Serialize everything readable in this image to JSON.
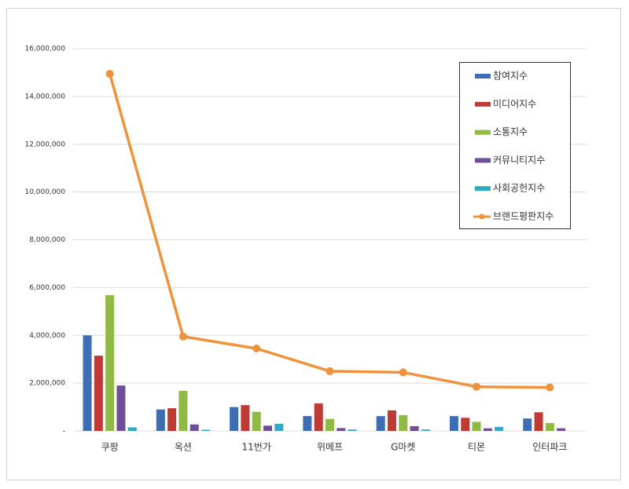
{
  "chart_data": {
    "type": "bar",
    "categories": [
      "쿠팡",
      "옥션",
      "11번가",
      "위메프",
      "G마켓",
      "티몬",
      "인터파크"
    ],
    "series": [
      {
        "name": "참여지수",
        "color": "#3d6eb4",
        "values": [
          4000000,
          900000,
          1000000,
          620000,
          620000,
          620000,
          520000
        ]
      },
      {
        "name": "미디어지수",
        "color": "#be3a34",
        "values": [
          3150000,
          950000,
          1080000,
          1150000,
          860000,
          550000,
          780000
        ]
      },
      {
        "name": "소통지수",
        "color": "#8fba46",
        "values": [
          5680000,
          1680000,
          800000,
          500000,
          660000,
          380000,
          330000
        ]
      },
      {
        "name": "커뮤니티지수",
        "color": "#6f4d97",
        "values": [
          1900000,
          270000,
          220000,
          120000,
          200000,
          110000,
          110000
        ]
      },
      {
        "name": "사회공헌지수",
        "color": "#33a9c6",
        "values": [
          150000,
          50000,
          300000,
          60000,
          60000,
          170000,
          0
        ]
      },
      {
        "name": "브랜드평판지수",
        "color": "#f0913c",
        "type": "line",
        "values": [
          14950000,
          3950000,
          3450000,
          2500000,
          2450000,
          1850000,
          1820000
        ]
      }
    ],
    "ylim": [
      0,
      16000000
    ],
    "yticks": [
      {
        "value": 0,
        "label": "-"
      },
      {
        "value": 2000000,
        "label": "2,000,000"
      },
      {
        "value": 4000000,
        "label": "4,000,000"
      },
      {
        "value": 6000000,
        "label": "6,000,000"
      },
      {
        "value": 8000000,
        "label": "8,000,000"
      },
      {
        "value": 10000000,
        "label": "10,000,000"
      },
      {
        "value": 12000000,
        "label": "12,000,000"
      },
      {
        "value": 14000000,
        "label": "14,000,000"
      },
      {
        "value": 16000000,
        "label": "16,000,000"
      }
    ],
    "grid": true,
    "legend": "upper right"
  }
}
